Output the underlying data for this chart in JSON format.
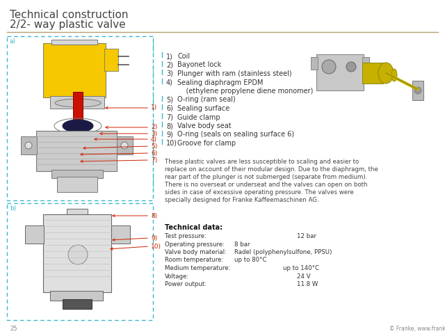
{
  "title_line1": "Technical construction",
  "title_line2": "2/2- way plastic valve",
  "title_fontsize": 11,
  "bg_color": "#ffffff",
  "title_color": "#444444",
  "separator_color": "#b5a070",
  "label_a": "a)",
  "label_b": "b)",
  "label_color": "#3ab8cc",
  "dashed_box_color": "#3ab8cc",
  "arrow_color": "#cc2200",
  "numbered_label_color": "#cc2200",
  "description": "These plastic valves are less susceptible to scaling and easier to\nreplace on account of their modular design. Due to the diaphragm, the\nrear part of the plunger is not submerged (separate from medium).\nThere is no overseat or underseat and the valves can open on both\nsides in case of excessive operating pressure. The valves were\nspecially designed for Franke Kaffeemaschinen AG.",
  "tech_data_title": "Technical data:",
  "tech_data_rows": [
    {
      "label": "Test pressure:",
      "tab": 90,
      "value": "12 bar"
    },
    {
      "label": "Operating pressure:",
      "tab": 0,
      "value": "8 bar"
    },
    {
      "label": "Valve body material:",
      "tab": 0,
      "value": "Radel (polyphenylsulfone, PPSU)"
    },
    {
      "label": "Room temperature:",
      "tab": 0,
      "value": "up to 80°C"
    },
    {
      "label": "Medium temperature:",
      "tab": 70,
      "value": "up to 140°C"
    },
    {
      "label": "Voltage:",
      "tab": 90,
      "value": "24 V"
    },
    {
      "label": "Power output:",
      "tab": 90,
      "value": "11.8 W"
    }
  ],
  "page_number": "25",
  "copyright": "© Franke, www.franke.com",
  "body_fontsize": 7,
  "small_fontsize": 6.5
}
